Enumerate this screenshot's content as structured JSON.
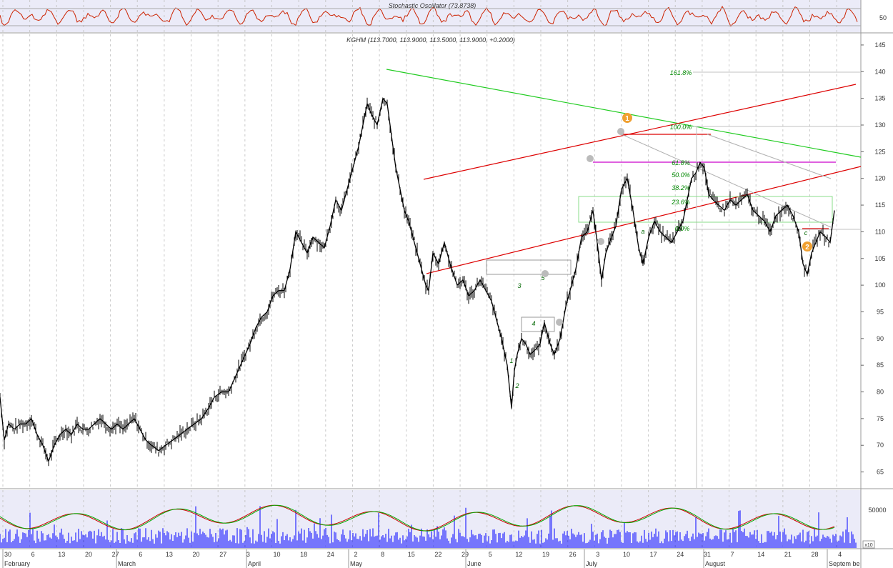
{
  "colors": {
    "panel_bg": "#ebebf8",
    "grid": "#c8c8c8",
    "price": "#000000",
    "volume": "#0000ff",
    "stoch": "#cc2200",
    "channel": "#dd0000",
    "trend_green": "#22cc22",
    "fib_text": "#008800",
    "magenta": "#cc00cc",
    "marker_orange": "#f0a030",
    "marker_grey": "#aaaaaa"
  },
  "stochastic": {
    "title": "Stochastic Oscillator (73.8738)",
    "axis_label": "50"
  },
  "chart_data": {
    "type": "ohlc",
    "title": "KGHM (113.7000, 113.9000, 113.5000, 113.9000, +0.2000)",
    "ylim": [
      62,
      147
    ],
    "y_ticks": [
      65,
      70,
      75,
      80,
      85,
      90,
      95,
      100,
      105,
      110,
      115,
      120,
      125,
      130,
      135,
      140,
      145
    ],
    "x_day_labels": [
      "30",
      "6",
      "13",
      "20",
      "27",
      "6",
      "13",
      "20",
      "27",
      "3",
      "10",
      "18",
      "24",
      "2",
      "8",
      "15",
      "22",
      "29",
      "5",
      "12",
      "19",
      "26",
      "3",
      "10",
      "17",
      "24",
      "31",
      "7",
      "14",
      "21",
      "28",
      "4"
    ],
    "x_month_labels": [
      "February",
      "March",
      "April",
      "May",
      "June",
      "July",
      "August",
      "Septem be"
    ],
    "price_path": [
      [
        0,
        79
      ],
      [
        6,
        71
      ],
      [
        12,
        74
      ],
      [
        20,
        73
      ],
      [
        28,
        74
      ],
      [
        36,
        74
      ],
      [
        44,
        75
      ],
      [
        52,
        72
      ],
      [
        60,
        70
      ],
      [
        68,
        67
      ],
      [
        76,
        70
      ],
      [
        84,
        72
      ],
      [
        92,
        73
      ],
      [
        100,
        72
      ],
      [
        108,
        74
      ],
      [
        116,
        73
      ],
      [
        124,
        73
      ],
      [
        132,
        74
      ],
      [
        140,
        75
      ],
      [
        148,
        74
      ],
      [
        156,
        73
      ],
      [
        164,
        74
      ],
      [
        172,
        73
      ],
      [
        180,
        74
      ],
      [
        188,
        75
      ],
      [
        196,
        73
      ],
      [
        204,
        71
      ],
      [
        212,
        70
      ],
      [
        222,
        69
      ],
      [
        232,
        70
      ],
      [
        242,
        71
      ],
      [
        252,
        72
      ],
      [
        262,
        73
      ],
      [
        272,
        74
      ],
      [
        282,
        75
      ],
      [
        292,
        77
      ],
      [
        300,
        79
      ],
      [
        310,
        80
      ],
      [
        320,
        80
      ],
      [
        330,
        83
      ],
      [
        340,
        86
      ],
      [
        350,
        89
      ],
      [
        358,
        92
      ],
      [
        366,
        94
      ],
      [
        374,
        95
      ],
      [
        382,
        98
      ],
      [
        390,
        99
      ],
      [
        398,
        99
      ],
      [
        406,
        103
      ],
      [
        414,
        110
      ],
      [
        422,
        108
      ],
      [
        430,
        106
      ],
      [
        438,
        109
      ],
      [
        446,
        108
      ],
      [
        454,
        107
      ],
      [
        462,
        111
      ],
      [
        470,
        116
      ],
      [
        478,
        114
      ],
      [
        486,
        118
      ],
      [
        494,
        122
      ],
      [
        502,
        126
      ],
      [
        508,
        130
      ],
      [
        514,
        134
      ],
      [
        520,
        132
      ],
      [
        528,
        130
      ],
      [
        536,
        135
      ],
      [
        542,
        134
      ],
      [
        548,
        128
      ],
      [
        554,
        122
      ],
      [
        560,
        118
      ],
      [
        566,
        114
      ],
      [
        572,
        112
      ],
      [
        580,
        108
      ],
      [
        588,
        104
      ],
      [
        596,
        100
      ],
      [
        600,
        99
      ],
      [
        606,
        106
      ],
      [
        614,
        104
      ],
      [
        622,
        108
      ],
      [
        630,
        104
      ],
      [
        640,
        100
      ],
      [
        648,
        101
      ],
      [
        656,
        98
      ],
      [
        664,
        99
      ],
      [
        672,
        101
      ],
      [
        680,
        99
      ],
      [
        688,
        97
      ],
      [
        694,
        94
      ],
      [
        702,
        90
      ],
      [
        710,
        85
      ],
      [
        716,
        77
      ],
      [
        720,
        84
      ],
      [
        724,
        87
      ],
      [
        730,
        90
      ],
      [
        736,
        89
      ],
      [
        742,
        87
      ],
      [
        750,
        88
      ],
      [
        756,
        89
      ],
      [
        762,
        93
      ],
      [
        770,
        89
      ],
      [
        776,
        87
      ],
      [
        784,
        90
      ],
      [
        792,
        96
      ],
      [
        798,
        99
      ],
      [
        806,
        103
      ],
      [
        814,
        109
      ],
      [
        822,
        110
      ],
      [
        830,
        114
      ],
      [
        836,
        108
      ],
      [
        842,
        101
      ],
      [
        848,
        106
      ],
      [
        856,
        109
      ],
      [
        862,
        111
      ],
      [
        870,
        118
      ],
      [
        878,
        120
      ],
      [
        886,
        114
      ],
      [
        894,
        107
      ],
      [
        900,
        104
      ],
      [
        908,
        109
      ],
      [
        916,
        112
      ],
      [
        924,
        110
      ],
      [
        932,
        109
      ],
      [
        940,
        108
      ],
      [
        948,
        110
      ],
      [
        956,
        112
      ],
      [
        962,
        116
      ],
      [
        968,
        120
      ],
      [
        974,
        121
      ],
      [
        980,
        123
      ],
      [
        986,
        122
      ],
      [
        992,
        117
      ],
      [
        998,
        116
      ],
      [
        1006,
        115
      ],
      [
        1014,
        114
      ],
      [
        1022,
        116
      ],
      [
        1030,
        115
      ],
      [
        1038,
        116
      ],
      [
        1046,
        117
      ],
      [
        1054,
        114
      ],
      [
        1062,
        113
      ],
      [
        1070,
        112
      ],
      [
        1078,
        110
      ],
      [
        1086,
        113
      ],
      [
        1094,
        114
      ],
      [
        1102,
        115
      ],
      [
        1110,
        113
      ],
      [
        1118,
        110
      ],
      [
        1124,
        104
      ],
      [
        1130,
        102
      ],
      [
        1136,
        106
      ],
      [
        1142,
        108
      ],
      [
        1148,
        110
      ],
      [
        1156,
        109
      ],
      [
        1162,
        108
      ],
      [
        1168,
        114
      ]
    ],
    "annotations": {
      "fib_levels": [
        "161.8%",
        "100.0%",
        "61.8%",
        "50.0%",
        "38.2%",
        "23.6%",
        "0.0%"
      ],
      "wave_labels": [
        "1",
        "2",
        "3",
        "4",
        "5",
        "a",
        "c"
      ],
      "major_wave_markers": [
        "1",
        "2"
      ]
    }
  },
  "volume": {
    "axis_label": "50000",
    "corner_label": "x10"
  }
}
